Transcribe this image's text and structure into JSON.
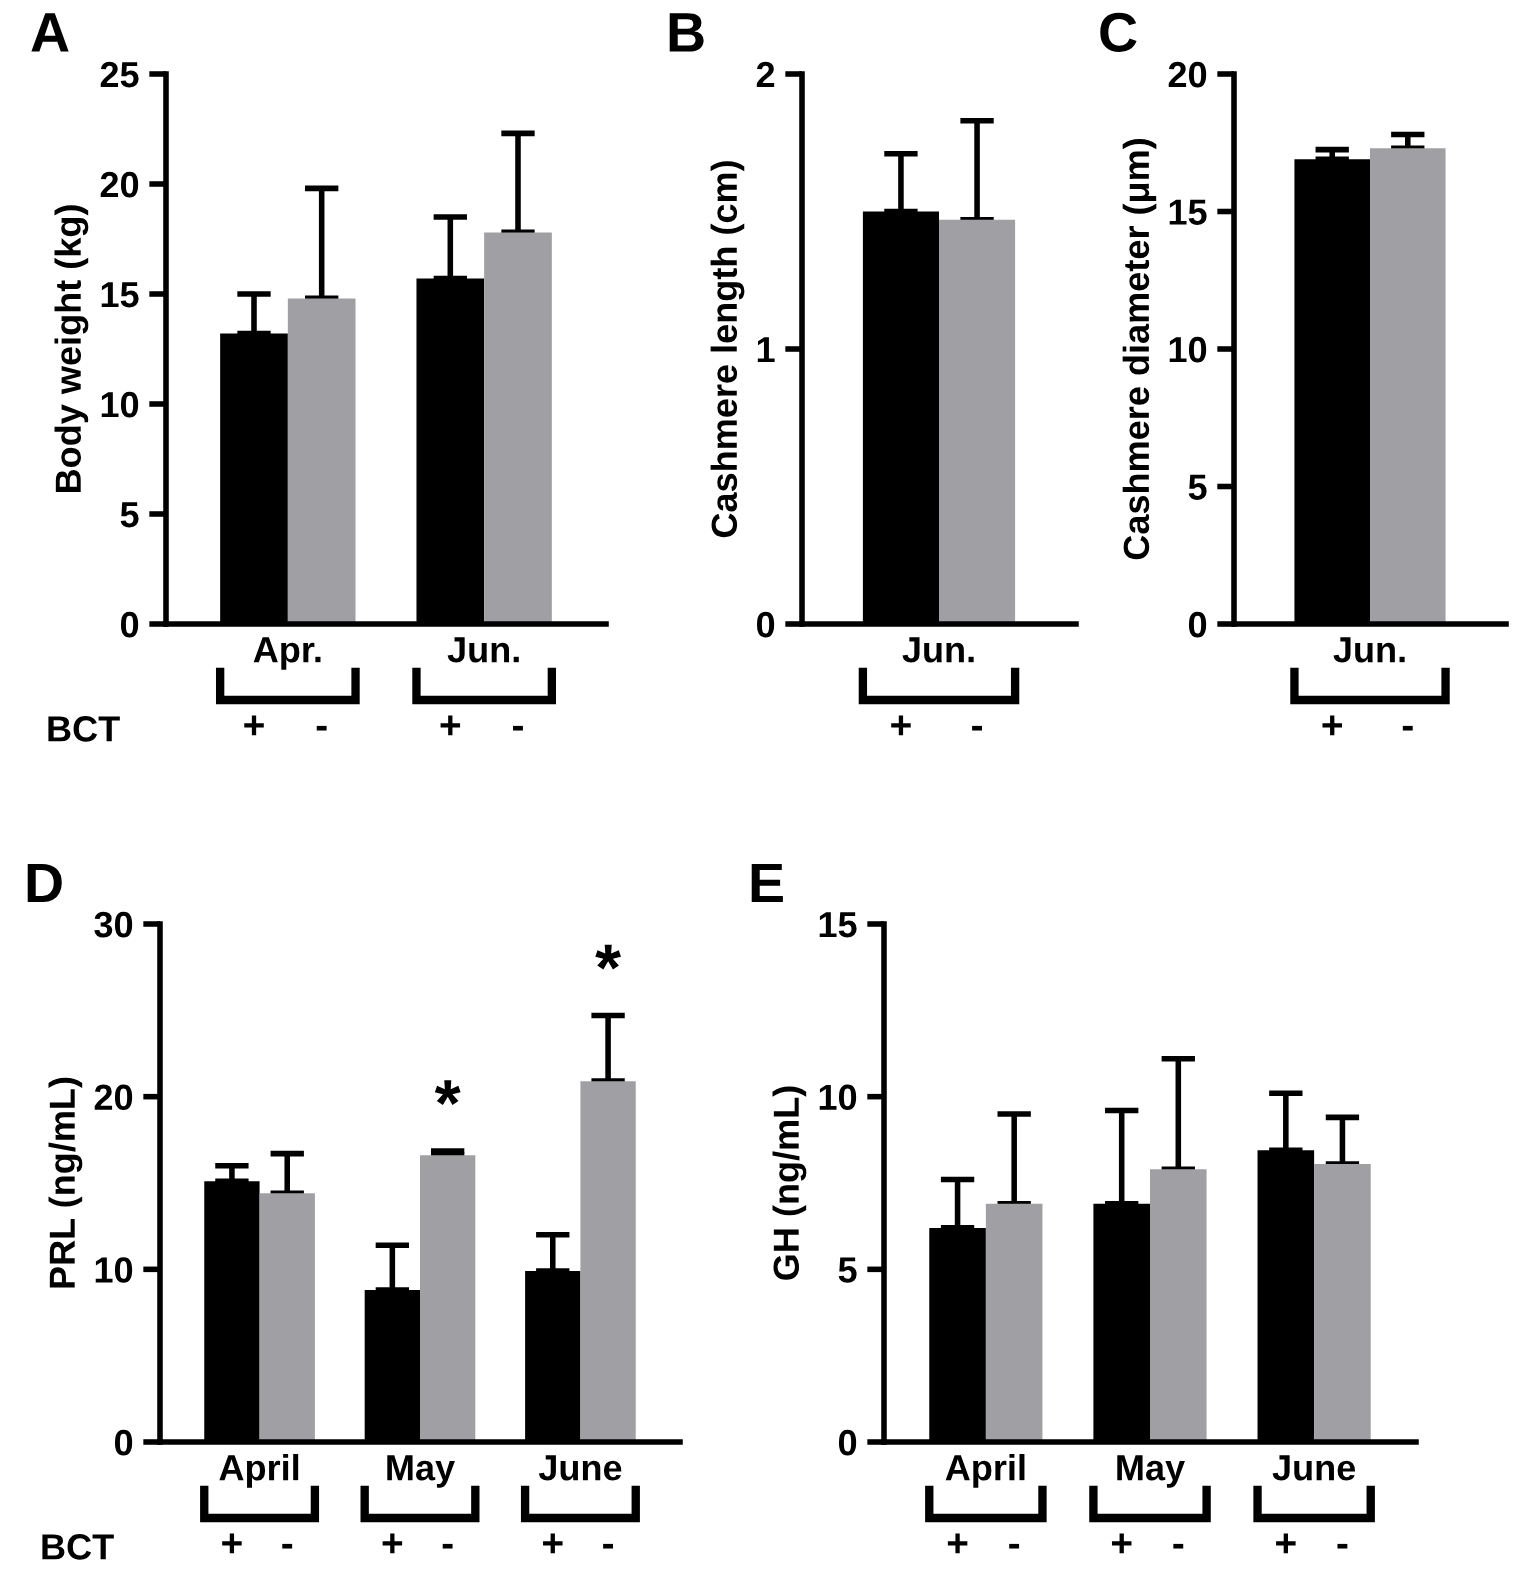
{
  "chart_data": [
    {
      "type": "bar",
      "title": "A",
      "ylabel": "Body weight (kg)",
      "categories": [
        "+",
        "-",
        "+",
        "-"
      ],
      "values": [
        13.2,
        14.8,
        15.7,
        17.8
      ],
      "colors": [
        "#000000",
        "#a0a0a4",
        "#000000",
        "#a0a0a4"
      ],
      "errors": [
        [
          13.2,
          15.0
        ],
        [
          14.8,
          19.8
        ],
        [
          15.7,
          18.5
        ],
        [
          17.8,
          22.3
        ]
      ],
      "ylim": [
        0,
        25
      ],
      "yticks": [
        0,
        5,
        10,
        15,
        20,
        25
      ],
      "grid": false,
      "annotations": [
        "Apr.",
        "Jun.",
        "BCT"
      ]
    },
    {
      "type": "bar",
      "title": "B",
      "ylabel": "Cashmere length (cm)",
      "categories": [
        "+",
        "-"
      ],
      "values": [
        1.5,
        1.47
      ],
      "colors": [
        "#000000",
        "#a0a0a4"
      ],
      "errors": [
        [
          1.5,
          1.71
        ],
        [
          1.47,
          1.83
        ]
      ],
      "ylim": [
        0,
        2
      ],
      "yticks": [
        0,
        1,
        2
      ],
      "grid": false,
      "annotations": [
        "Jun."
      ]
    },
    {
      "type": "bar",
      "title": "C",
      "ylabel": "Cashmere diameter (μm)",
      "categories": [
        "+",
        "-"
      ],
      "values": [
        16.9,
        17.3
      ],
      "colors": [
        "#000000",
        "#a0a0a4"
      ],
      "errors": [
        [
          16.9,
          17.25
        ],
        [
          17.3,
          17.8
        ]
      ],
      "ylim": [
        0,
        20
      ],
      "yticks": [
        0,
        5,
        10,
        15,
        20
      ],
      "grid": false,
      "annotations": [
        "Jun."
      ]
    },
    {
      "type": "bar",
      "title": "D",
      "ylabel": "PRL (ng/mL)",
      "categories": [
        "+",
        "-",
        "+",
        "-",
        "+",
        "-"
      ],
      "values": [
        15.1,
        14.4,
        8.8,
        16.6,
        9.9,
        20.9
      ],
      "colors": [
        "#000000",
        "#a0a0a4",
        "#000000",
        "#a0a0a4",
        "#000000",
        "#a0a0a4"
      ],
      "errors": [
        [
          15.1,
          16.0
        ],
        [
          14.4,
          16.7
        ],
        [
          8.8,
          11.4
        ],
        [
          16.6,
          16.85
        ],
        [
          9.9,
          12.0
        ],
        [
          20.9,
          24.7
        ]
      ],
      "value_labels": [
        null,
        null,
        null,
        "*",
        null,
        "*"
      ],
      "ylim": [
        0,
        30
      ],
      "yticks": [
        0,
        10,
        20,
        30
      ],
      "grid": false,
      "annotations": [
        "April",
        "May",
        "June",
        "BCT"
      ]
    },
    {
      "type": "bar",
      "title": "E",
      "ylabel": "GH (ng/mL)",
      "categories": [
        "+",
        "-",
        "+",
        "-",
        "+",
        "-"
      ],
      "values": [
        6.2,
        6.9,
        6.9,
        7.9,
        8.45,
        8.05
      ],
      "colors": [
        "#000000",
        "#a0a0a4",
        "#000000",
        "#a0a0a4",
        "#000000",
        "#a0a0a4"
      ],
      "errors": [
        [
          6.2,
          7.6
        ],
        [
          6.9,
          9.5
        ],
        [
          6.9,
          9.6
        ],
        [
          7.9,
          11.1
        ],
        [
          8.45,
          10.1
        ],
        [
          8.05,
          9.4
        ]
      ],
      "ylim": [
        0,
        15
      ],
      "yticks": [
        0,
        5,
        10,
        15
      ],
      "grid": false,
      "annotations": [
        "April",
        "May",
        "June"
      ]
    }
  ]
}
